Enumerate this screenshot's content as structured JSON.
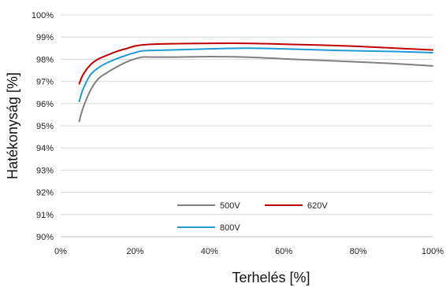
{
  "chart_data": {
    "type": "line",
    "title": "",
    "xlabel": "Terhelés [%]",
    "ylabel": "Hatékonyság [%]",
    "xlim": [
      0,
      100
    ],
    "ylim": [
      90,
      100
    ],
    "x_ticks": [
      0,
      20,
      40,
      60,
      80,
      100
    ],
    "x_tick_labels": [
      "0%",
      "20%",
      "40%",
      "60%",
      "80%",
      "100%"
    ],
    "y_ticks": [
      90,
      91,
      92,
      93,
      94,
      95,
      96,
      97,
      98,
      99,
      100
    ],
    "y_tick_labels": [
      "90%",
      "91%",
      "92%",
      "93%",
      "94%",
      "95%",
      "96%",
      "97%",
      "98%",
      "99%",
      "100%"
    ],
    "grid": "horizontal",
    "legend_position": "center",
    "series": [
      {
        "name": "500V",
        "color": "#808080",
        "x": [
          5,
          6,
          8,
          10,
          12,
          15,
          18,
          20,
          22,
          25,
          30,
          40,
          50,
          60,
          70,
          80,
          90,
          100
        ],
        "y": [
          95.2,
          95.8,
          96.6,
          97.1,
          97.35,
          97.65,
          97.9,
          98.02,
          98.1,
          98.1,
          98.1,
          98.12,
          98.1,
          98.02,
          97.95,
          97.88,
          97.8,
          97.7
        ]
      },
      {
        "name": "620V",
        "color": "#c00000",
        "x": [
          5,
          6,
          8,
          10,
          12,
          15,
          18,
          20,
          22,
          25,
          30,
          40,
          50,
          60,
          70,
          80,
          90,
          100
        ],
        "y": [
          96.9,
          97.3,
          97.75,
          98.0,
          98.15,
          98.35,
          98.5,
          98.6,
          98.65,
          98.68,
          98.7,
          98.72,
          98.72,
          98.68,
          98.64,
          98.58,
          98.5,
          98.42
        ]
      },
      {
        "name": "800V",
        "color": "#1f9bd7",
        "x": [
          5,
          6,
          8,
          10,
          12,
          15,
          18,
          20,
          22,
          25,
          30,
          40,
          50,
          60,
          70,
          80,
          90,
          100
        ],
        "y": [
          96.1,
          96.65,
          97.3,
          97.6,
          97.8,
          98.02,
          98.2,
          98.3,
          98.38,
          98.4,
          98.42,
          98.47,
          98.5,
          98.47,
          98.42,
          98.38,
          98.35,
          98.3
        ]
      }
    ]
  }
}
